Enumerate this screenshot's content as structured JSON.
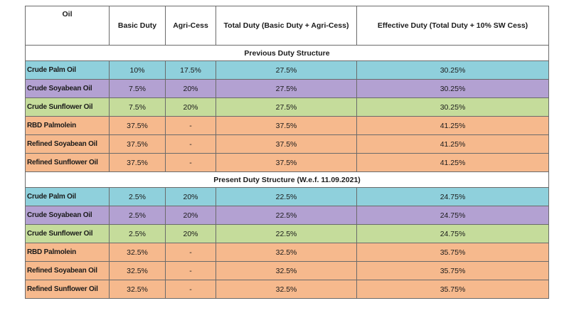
{
  "headers": {
    "oil": "Oil",
    "basic_duty": "Basic Duty",
    "agri_cess": "Agri-Cess",
    "total_duty": "Total Duty (Basic Duty + Agri-Cess)",
    "effective_duty": "Effective Duty (Total Duty + 10% SW Cess)"
  },
  "colors": {
    "crude_palm": "#8fd0dc",
    "crude_soyabean": "#b3a1d2",
    "crude_sunflower": "#c5dc9b",
    "refined": "#f6b98d"
  },
  "sections": [
    {
      "title": "Previous Duty Structure",
      "rows": [
        {
          "oil": "Crude Palm Oil",
          "basic": "10%",
          "agri": "17.5%",
          "total": "27.5%",
          "effective": "30.25%",
          "color": "blue"
        },
        {
          "oil": "Crude Soyabean Oil",
          "basic": "7.5%",
          "agri": "20%",
          "total": "27.5%",
          "effective": "30.25%",
          "color": "purple"
        },
        {
          "oil": "Crude Sunflower Oil",
          "basic": "7.5%",
          "agri": "20%",
          "total": "27.5%",
          "effective": "30.25%",
          "color": "green"
        },
        {
          "oil": "RBD Palmolein",
          "basic": "37.5%",
          "agri": "-",
          "total": "37.5%",
          "effective": "41.25%",
          "color": "orange"
        },
        {
          "oil": "Refined Soyabean Oil",
          "basic": "37.5%",
          "agri": "-",
          "total": "37.5%",
          "effective": "41.25%",
          "color": "orange"
        },
        {
          "oil": "Refined Sunflower Oil",
          "basic": "37.5%",
          "agri": "-",
          "total": "37.5%",
          "effective": "41.25%",
          "color": "orange"
        }
      ]
    },
    {
      "title": "Present Duty Structure (W.e.f. 11.09.2021)",
      "rows": [
        {
          "oil": "Crude Palm Oil",
          "basic": "2.5%",
          "agri": "20%",
          "total": "22.5%",
          "effective": "24.75%",
          "color": "blue"
        },
        {
          "oil": "Crude Soyabean Oil",
          "basic": "2.5%",
          "agri": "20%",
          "total": "22.5%",
          "effective": "24.75%",
          "color": "purple"
        },
        {
          "oil": "Crude Sunflower Oil",
          "basic": "2.5%",
          "agri": "20%",
          "total": "22.5%",
          "effective": "24.75%",
          "color": "green"
        },
        {
          "oil": "RBD Palmolein",
          "basic": "32.5%",
          "agri": "-",
          "total": "32.5%",
          "effective": "35.75%",
          "color": "orange"
        },
        {
          "oil": "Refined Soyabean Oil",
          "basic": "32.5%",
          "agri": "-",
          "total": "32.5%",
          "effective": "35.75%",
          "color": "orange"
        },
        {
          "oil": "Refined Sunflower Oil",
          "basic": "32.5%",
          "agri": "-",
          "total": "32.5%",
          "effective": "35.75%",
          "color": "orange"
        }
      ]
    }
  ]
}
